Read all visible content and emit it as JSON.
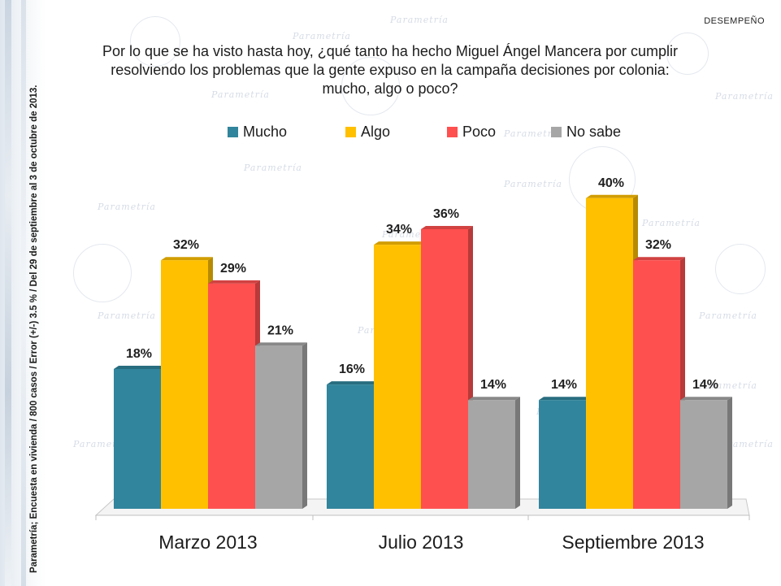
{
  "header": {
    "tag": "DESEMPEÑO",
    "title": "Por lo que se ha visto hasta hoy, ¿qué tanto ha hecho Miguel Ángel Mancera por cumplir resolviendo los problemas que la gente expuso en la campaña decisiones por colonia: mucho, algo o poco?"
  },
  "side_note": "Parametría; Encuesta en vivienda / 800 casos / Error (+/-) 3.5 % / Del 29 de septiembre al 3 de octubre de 2013.",
  "watermark": "Parametría",
  "colors": {
    "mucho": "#31859C",
    "algo": "#FFC000",
    "poco": "#FF5050",
    "no_sabe": "#A6A6A6"
  },
  "chart_data": {
    "type": "bar",
    "categories": [
      "Marzo 2013",
      "Julio 2013",
      "Septiembre 2013"
    ],
    "series": [
      {
        "name": "Mucho",
        "values": [
          18,
          16,
          14
        ],
        "labels": [
          "18%",
          "16%",
          "14%"
        ],
        "color": "#31859C"
      },
      {
        "name": "Algo",
        "values": [
          32,
          34,
          40
        ],
        "labels": [
          "32%",
          "34%",
          "40%"
        ],
        "color": "#FFC000"
      },
      {
        "name": "Poco",
        "values": [
          29,
          36,
          null
        ],
        "labels": [
          "29%",
          "36%",
          "32%"
        ],
        "color": "#FF5050"
      },
      {
        "name": "No sabe",
        "values": [
          21,
          14,
          14
        ],
        "labels": [
          "21%",
          "14%",
          "14%"
        ],
        "color": "#A6A6A6"
      }
    ],
    "septiembre_poco_value": 32,
    "ylim": [
      0,
      45
    ],
    "legend_position": "top",
    "grid": false
  }
}
